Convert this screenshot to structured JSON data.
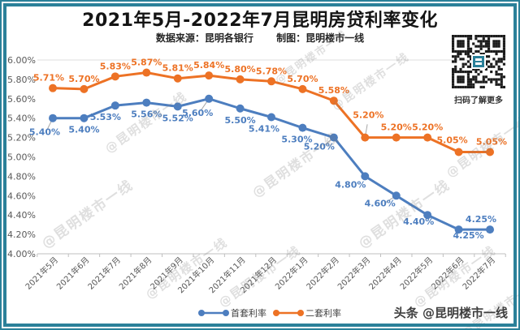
{
  "header": {
    "title": "2021年5月-2022年7月昆明房贷利率变化",
    "source_label": "数据来源：昆明各银行",
    "credit_label": "制图：昆明楼市一线"
  },
  "qr": {
    "caption": "扫码了解更多"
  },
  "watermark_text": "@昆明楼市一线",
  "footer": {
    "brand_label": "头条 @昆明楼市一线"
  },
  "chart_data": {
    "type": "line",
    "title": "2021年5月-2022年7月昆明房贷利率变化",
    "categories": [
      "2021年5月",
      "2021年6月",
      "2021年7月",
      "2021年8月",
      "2021年9月",
      "2021年10月",
      "2021年11月",
      "2021年12月",
      "2022年1月",
      "2022年2月",
      "2022年3月",
      "2022年4月",
      "2022年5月",
      "2022年6月",
      "2022年7月"
    ],
    "series": [
      {
        "name": "首套利率",
        "color": "#4D7EBF",
        "values": [
          5.4,
          5.4,
          5.53,
          5.56,
          5.52,
          5.6,
          5.5,
          5.41,
          5.3,
          5.2,
          4.8,
          4.6,
          4.4,
          4.25,
          4.25
        ]
      },
      {
        "name": "二套利率",
        "color": "#ED7225",
        "values": [
          5.71,
          5.7,
          5.83,
          5.87,
          5.81,
          5.84,
          5.8,
          5.78,
          5.7,
          5.58,
          5.2,
          5.2,
          5.2,
          5.05,
          5.05
        ]
      }
    ],
    "y_ticks": [
      "6.00%",
      "5.80%",
      "5.60%",
      "5.40%",
      "5.20%",
      "5.00%",
      "4.80%",
      "4.60%",
      "4.40%",
      "4.20%",
      "4.00%"
    ],
    "ylim": [
      4.0,
      6.0
    ],
    "xlabel": "",
    "ylabel": "",
    "grid": "top-line-only",
    "legend_position": "bottom",
    "label_format": "0.00%"
  }
}
